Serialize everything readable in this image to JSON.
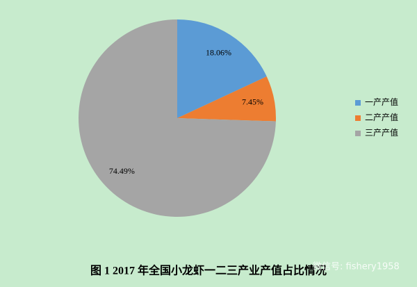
{
  "chart_data": {
    "type": "pie",
    "title": "图 1   2017 年全国小龙虾一二三产业产值占比情况",
    "categories": [
      "一产产值",
      "二产产值",
      "三产产值"
    ],
    "values": [
      18.06,
      7.45,
      74.49
    ],
    "value_labels": [
      "18.06%",
      "7.45%",
      "74.49%"
    ],
    "colors": [
      "#5b9bd5",
      "#ed7d31",
      "#a5a5a5"
    ],
    "legend": "right",
    "watermark": "微信号: fishery1958"
  }
}
